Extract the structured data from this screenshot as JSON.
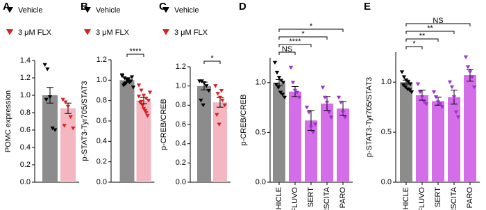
{
  "chart_data": [
    {
      "type": "bar",
      "panel": "A",
      "ylabel": "POMC expression",
      "legend": true,
      "ylim": [
        0,
        1.4
      ],
      "yticks": [
        {
          "value": 0,
          "label": "0.0"
        },
        0.2,
        0.4,
        0.6,
        0.8,
        {
          "value": 1,
          "label": "1.0"
        },
        1.2,
        1.4
      ],
      "series": [
        {
          "name": "Vehicle",
          "color": "#8c8c8c",
          "point_color": "#000000",
          "values": [
            1.0
          ],
          "errors": [
            0.09
          ],
          "points": [
            [
              1.35,
              1.3,
              0.98,
              0.62,
              0.6,
              0.95
            ]
          ]
        },
        {
          "name": "3 μM FLX",
          "color": "#f4b6c0",
          "point_color": "#d62020",
          "values": [
            0.85
          ],
          "errors": [
            0.06
          ],
          "points": [
            [
              0.95,
              0.92,
              0.87,
              0.75,
              0.62,
              0.65
            ]
          ]
        }
      ],
      "comparisons": []
    },
    {
      "type": "bar",
      "panel": "B",
      "ylabel": "p-STAT3-Tyr705/STAT3",
      "legend": true,
      "ylim": [
        0,
        1.2
      ],
      "yticks": [
        {
          "value": 0,
          "label": "0.0"
        },
        0.2,
        0.4,
        0.6,
        0.8,
        {
          "value": 1,
          "label": "1.0"
        },
        1.2
      ],
      "series": [
        {
          "name": "Vehicle",
          "color": "#8c8c8c",
          "point_color": "#000000",
          "values": [
            1.0
          ],
          "errors": [
            0.02
          ],
          "points": [
            [
              1.05,
              1.02,
              1.0,
              0.98,
              1.03,
              0.95,
              0.97,
              1.01,
              0.99,
              0.93,
              1.04,
              0.96,
              1.0,
              0.98
            ]
          ]
        },
        {
          "name": "3 μM FLX",
          "color": "#f4b6c0",
          "point_color": "#d62020",
          "values": [
            0.8
          ],
          "errors": [
            0.03
          ],
          "points": [
            [
              0.95,
              0.9,
              0.85,
              0.82,
              0.8,
              0.78,
              0.75,
              0.7,
              0.65,
              0.88,
              0.84,
              0.79,
              0.72,
              0.68
            ]
          ]
        }
      ],
      "comparisons": [
        {
          "from": 0,
          "to": 1,
          "label": "****"
        }
      ]
    },
    {
      "type": "bar",
      "panel": "C",
      "ylabel": "p-CREB/CREB",
      "legend": true,
      "ylim": [
        0,
        1.2
      ],
      "yticks": [
        {
          "value": 0,
          "label": "0.0"
        },
        0.2,
        0.4,
        0.6,
        0.8,
        {
          "value": 1,
          "label": "1.0"
        },
        1.2
      ],
      "series": [
        {
          "name": "Vehicle",
          "color": "#8c8c8c",
          "point_color": "#000000",
          "values": [
            1.0
          ],
          "errors": [
            0.04
          ],
          "points": [
            [
              1.05,
              1.05,
              1.03,
              1.0,
              0.95,
              0.85,
              0.8
            ]
          ]
        },
        {
          "name": "3 μM FLX",
          "color": "#f4b6c0",
          "point_color": "#d62020",
          "values": [
            0.83
          ],
          "errors": [
            0.05
          ],
          "points": [
            [
              1.0,
              0.92,
              0.88,
              0.85,
              0.8,
              0.7,
              0.6,
              0.95
            ]
          ]
        }
      ],
      "comparisons": [
        {
          "from": 0,
          "to": 1,
          "label": "*"
        }
      ]
    },
    {
      "type": "bar",
      "panel": "D",
      "ylabel": "p-CREB/CREB",
      "legend": false,
      "ylim": [
        0,
        1.25
      ],
      "yticks": [
        {
          "value": 0,
          "label": "0.0"
        },
        0.5,
        {
          "value": 1,
          "label": "1.0"
        }
      ],
      "series": [
        {
          "name": "VEHICLE",
          "color": "#8c8c8c",
          "point_color": "#000000",
          "values": [
            1.0
          ],
          "errors": [
            0.03
          ],
          "points": [
            [
              1.2,
              1.1,
              1.05,
              1.02,
              1.0,
              0.98,
              0.95,
              0.9,
              0.88,
              0.85
            ]
          ]
        },
        {
          "name": "FLUVO",
          "color": "#d46ee8",
          "point_color": "#9933cc",
          "values": [
            0.91
          ],
          "errors": [
            0.05
          ],
          "points": [
            [
              1.15,
              1.0,
              0.92,
              0.9,
              0.85
            ]
          ]
        },
        {
          "name": "SERT",
          "color": "#d46ee8",
          "point_color": "#9933cc",
          "values": [
            0.62
          ],
          "errors": [
            0.1
          ],
          "points": [
            [
              0.75,
              0.7,
              0.55,
              0.5,
              0.58
            ]
          ]
        },
        {
          "name": "ESCITA",
          "color": "#d46ee8",
          "point_color": "#9933cc",
          "values": [
            0.79
          ],
          "errors": [
            0.07
          ],
          "points": [
            [
              0.95,
              0.85,
              0.8,
              0.7,
              0.65
            ]
          ]
        },
        {
          "name": "PARO",
          "color": "#d46ee8",
          "point_color": "#9933cc",
          "values": [
            0.74
          ],
          "errors": [
            0.07
          ],
          "points": [
            [
              0.85,
              0.8,
              0.7,
              0.65
            ]
          ]
        }
      ],
      "comparisons": [
        {
          "from": 0,
          "to": 1,
          "label": "NS"
        },
        {
          "from": 0,
          "to": 2,
          "label": "****"
        },
        {
          "from": 0,
          "to": 3,
          "label": "*"
        },
        {
          "from": 0,
          "to": 4,
          "label": "*"
        }
      ]
    },
    {
      "type": "bar",
      "panel": "E",
      "ylabel": "p-STAT3-Tyr705/STAT3",
      "legend": false,
      "ylim": [
        0,
        1.3
      ],
      "yticks": [
        {
          "value": 0,
          "label": "0.0"
        },
        0.5,
        {
          "value": 1,
          "label": "1.0"
        }
      ],
      "series": [
        {
          "name": "VEHICLE",
          "color": "#8c8c8c",
          "point_color": "#000000",
          "values": [
            1.0
          ],
          "errors": [
            0.02
          ],
          "points": [
            [
              1.1,
              1.05,
              1.02,
              1.0,
              0.98,
              0.97,
              0.95,
              0.93,
              0.92,
              0.9
            ]
          ]
        },
        {
          "name": "FLUVO",
          "color": "#d46ee8",
          "point_color": "#9933cc",
          "values": [
            0.87
          ],
          "errors": [
            0.05
          ],
          "points": [
            [
              0.98,
              0.9,
              0.85,
              0.8,
              0.78
            ]
          ]
        },
        {
          "name": "SERT",
          "color": "#d46ee8",
          "point_color": "#9933cc",
          "values": [
            0.81
          ],
          "errors": [
            0.04
          ],
          "points": [
            [
              0.9,
              0.85,
              0.8,
              0.78,
              0.75
            ]
          ]
        },
        {
          "name": "ESCITA",
          "color": "#d46ee8",
          "point_color": "#9933cc",
          "values": [
            0.85
          ],
          "errors": [
            0.07
          ],
          "points": [
            [
              1.0,
              0.95,
              0.85,
              0.7,
              0.65
            ]
          ]
        },
        {
          "name": "PARO",
          "color": "#d46ee8",
          "point_color": "#9933cc",
          "values": [
            1.07
          ],
          "errors": [
            0.06
          ],
          "points": [
            [
              1.25,
              1.15,
              1.1,
              1.05,
              0.95
            ]
          ]
        }
      ],
      "comparisons": [
        {
          "from": 0,
          "to": 1,
          "label": "*"
        },
        {
          "from": 0,
          "to": 2,
          "label": "**"
        },
        {
          "from": 0,
          "to": 3,
          "label": "**"
        },
        {
          "from": 0,
          "to": 4,
          "label": "NS"
        }
      ]
    }
  ]
}
